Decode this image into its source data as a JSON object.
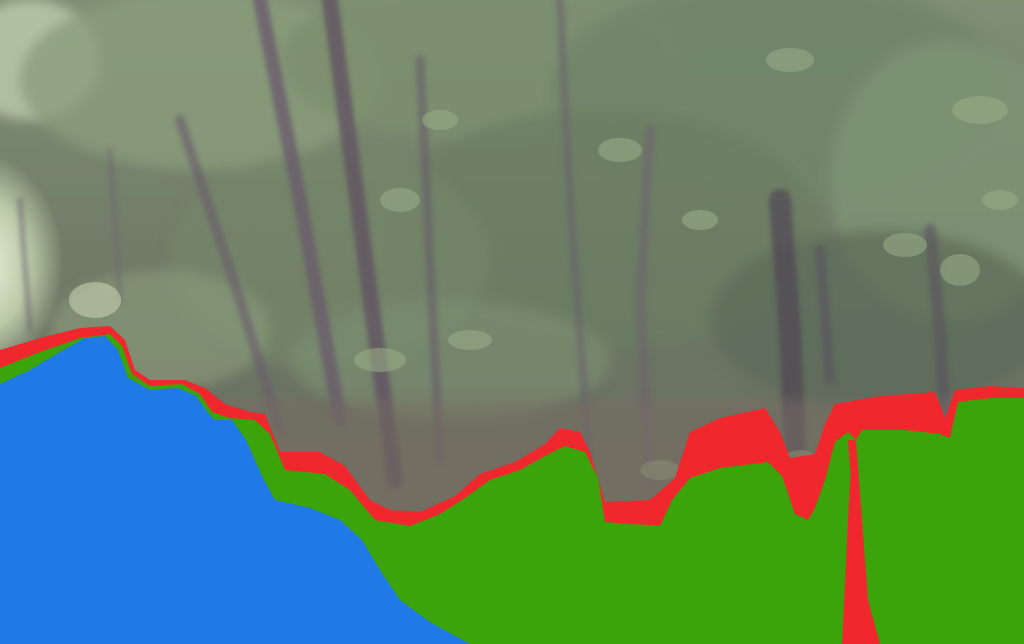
{
  "colors": {
    "sky_haze": "#d9e4c8",
    "foliage_light": "#8fa27e",
    "foliage_mid": "#6d7f62",
    "foliage_dark": "#4f5f4c",
    "trunk": "#6a5a6c",
    "trunk_dark": "#524656",
    "understory": "#7a7064",
    "segment_red": "#f0282e",
    "segment_green": "#3aa40a",
    "segment_blue": "#1f7ae8"
  },
  "regions": [
    {
      "name": "path-region",
      "color_key": "segment_blue"
    },
    {
      "name": "vegetation-region",
      "color_key": "segment_green"
    },
    {
      "name": "boundary-region",
      "color_key": "segment_red"
    }
  ]
}
